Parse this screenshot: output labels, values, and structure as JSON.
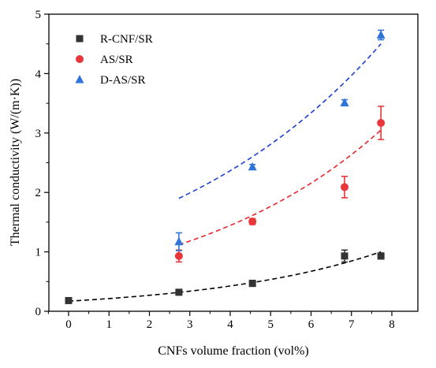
{
  "chart_data": {
    "type": "scatter",
    "xlabel": "CNFs volume fraction (vol%)",
    "ylabel": "Thermal conductivity (W/(m·K))",
    "xlim": [
      -0.5,
      8.5
    ],
    "ylim": [
      0,
      5
    ],
    "xticks": [
      0,
      1,
      2,
      3,
      4,
      5,
      6,
      7,
      8
    ],
    "yticks": [
      0,
      1,
      2,
      3,
      4,
      5
    ],
    "grid": false,
    "legend_position": "top-left",
    "series": [
      {
        "name": "R-CNF/SR",
        "marker": "square",
        "color": "#333333",
        "fit_color": "#000000",
        "points": [
          {
            "x": 0,
            "y": 0.18,
            "err": 0.02
          },
          {
            "x": 2.73,
            "y": 0.32,
            "err": 0.03
          },
          {
            "x": 4.55,
            "y": 0.47,
            "err": 0.05
          },
          {
            "x": 6.83,
            "y": 0.93,
            "err": 0.1
          },
          {
            "x": 7.73,
            "y": 0.93,
            "err": 0.05
          }
        ],
        "fit": {
          "x_start": 0,
          "x_end": 7.73,
          "y_start": 0.17,
          "y_end": 1.0
        }
      },
      {
        "name": "AS/SR",
        "marker": "circle",
        "color": "#e8363b",
        "fit_color": "#e8242a",
        "points": [
          {
            "x": 2.73,
            "y": 0.93,
            "err": 0.1
          },
          {
            "x": 4.55,
            "y": 1.51,
            "err": 0.05
          },
          {
            "x": 6.83,
            "y": 2.09,
            "err": 0.18
          },
          {
            "x": 7.73,
            "y": 3.17,
            "err": 0.28
          }
        ],
        "fit": {
          "x_start": 2.73,
          "x_end": 7.73,
          "y_start": 1.12,
          "y_end": 3.05
        }
      },
      {
        "name": "D-AS/SR",
        "marker": "triangle",
        "color": "#2f74d8",
        "fit_color": "#1d3fd6",
        "points": [
          {
            "x": 2.73,
            "y": 1.17,
            "err": 0.15
          },
          {
            "x": 4.55,
            "y": 2.43,
            "err": 0.04
          },
          {
            "x": 6.83,
            "y": 3.51,
            "err": 0.05
          },
          {
            "x": 7.73,
            "y": 4.65,
            "err": 0.08
          }
        ],
        "fit": {
          "x_start": 2.73,
          "x_end": 7.73,
          "y_start": 1.9,
          "y_end": 4.5
        }
      }
    ]
  }
}
